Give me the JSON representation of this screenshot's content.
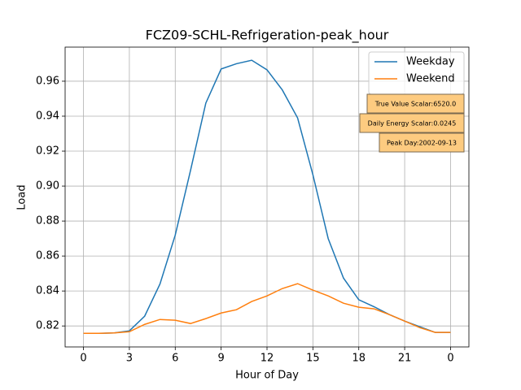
{
  "chart_data": {
    "type": "line",
    "title": "FCZ09-SCHL-Refrigeration-peak_hour",
    "x_label": "Hour of Day",
    "y_label": "Load",
    "x": [
      0,
      1,
      2,
      3,
      4,
      5,
      6,
      7,
      8,
      9,
      10,
      11,
      12,
      13,
      14,
      15,
      16,
      17,
      18,
      19,
      20,
      21,
      22,
      23,
      24
    ],
    "series": [
      {
        "name": "Weekday",
        "color": "#1f77b4",
        "values": [
          0.8158,
          0.8158,
          0.816,
          0.8172,
          0.8256,
          0.844,
          0.872,
          0.909,
          0.9475,
          0.967,
          0.97,
          0.972,
          0.9665,
          0.955,
          0.939,
          0.9065,
          0.87,
          0.8474,
          0.835,
          0.831,
          0.8265,
          0.8228,
          0.8195,
          0.8163,
          0.8163
        ]
      },
      {
        "name": "Weekend",
        "color": "#ff7f0e",
        "values": [
          0.8158,
          0.8158,
          0.816,
          0.8167,
          0.8209,
          0.8237,
          0.8233,
          0.8214,
          0.8242,
          0.8274,
          0.8293,
          0.834,
          0.8372,
          0.8414,
          0.8442,
          0.8405,
          0.8372,
          0.833,
          0.8307,
          0.8298,
          0.8265,
          0.8228,
          0.819,
          0.8163,
          0.8163
        ]
      }
    ],
    "xlim": [
      -1.2,
      25.2
    ],
    "xticks": [
      0,
      3,
      6,
      9,
      12,
      15,
      18,
      21,
      {
        "value": 24,
        "label": "0"
      }
    ],
    "ylim": [
      0.808,
      0.9795
    ],
    "yticks": [
      0.82,
      0.84,
      0.86,
      0.88,
      {
        "value": 0.9,
        "label": "0.90"
      },
      0.92,
      0.94,
      0.96
    ],
    "grid": true,
    "legend": "upper right",
    "annotations": [
      "True Value Scalar:6520.0",
      "Daily Energy Scalar:0.0245",
      "Peak Day:2002-09-13"
    ]
  }
}
